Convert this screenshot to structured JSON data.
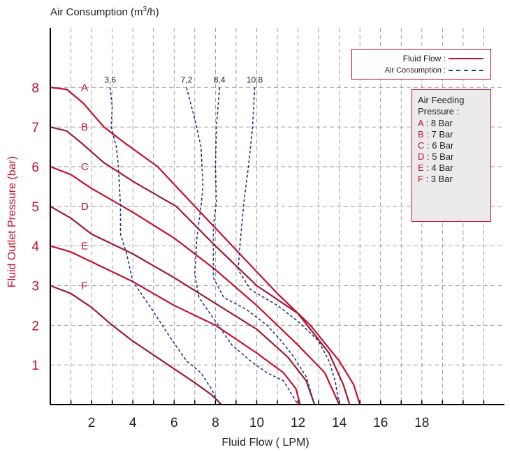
{
  "chart_data": {
    "type": "line",
    "top_axis_label": "Air Consumption (m",
    "top_axis_label_sup": "3",
    "top_axis_label_end": "/h)",
    "xlabel": "Fluid Flow ( LPM)",
    "ylabel": "Fluid Outlet Pressure (bar)",
    "xlim": [
      0,
      22
    ],
    "ylim": [
      0,
      9.5
    ],
    "x_ticks": [
      2,
      4,
      6,
      8,
      10,
      12,
      14,
      16,
      18
    ],
    "y_ticks": [
      1,
      2,
      3,
      4,
      5,
      6,
      7,
      8
    ],
    "grid": true,
    "legend": {
      "placement": "top-right",
      "fluid_flow": "Fluid Flow :",
      "air_consumption": "Air Consumption :"
    },
    "feeding_pressure": {
      "title_line1": "Air Feeding",
      "title_line2": "Pressure :",
      "items": [
        {
          "key": "A",
          "text": ": 8 Bar"
        },
        {
          "key": "B",
          "text": ": 7 Bar"
        },
        {
          "key": "C",
          "text": ": 6 Bar"
        },
        {
          "key": "D",
          "text": ": 5 Bar"
        },
        {
          "key": "E",
          "text": ": 4 Bar"
        },
        {
          "key": "F",
          "text": ": 3 Bar"
        }
      ]
    },
    "fluid_flow_series": [
      {
        "label": "A",
        "color": "#c8102e",
        "points": [
          [
            0,
            8
          ],
          [
            0.8,
            7.95
          ],
          [
            1.6,
            7.6
          ],
          [
            2.6,
            7
          ],
          [
            3.6,
            6.6
          ],
          [
            5.2,
            6
          ],
          [
            7,
            5
          ],
          [
            9,
            3.9
          ],
          [
            11,
            2.8
          ],
          [
            12.6,
            2
          ],
          [
            14,
            1.1
          ],
          [
            14.7,
            0.5
          ],
          [
            15,
            0
          ]
        ]
      },
      {
        "label": "B",
        "color": "#9e1b32",
        "points": [
          [
            0,
            7
          ],
          [
            0.8,
            6.9
          ],
          [
            1.5,
            6.6
          ],
          [
            2.6,
            6.1
          ],
          [
            4.1,
            5.6
          ],
          [
            6.1,
            5
          ],
          [
            8,
            4
          ],
          [
            10,
            3
          ],
          [
            12,
            2.3
          ],
          [
            13.5,
            1.3
          ],
          [
            14.2,
            0.5
          ],
          [
            14.5,
            0
          ]
        ]
      },
      {
        "label": "C",
        "color": "#c8102e",
        "points": [
          [
            0,
            6
          ],
          [
            1,
            5.8
          ],
          [
            2,
            5.45
          ],
          [
            4,
            4.85
          ],
          [
            6,
            4.2
          ],
          [
            8,
            3.4
          ],
          [
            10,
            2.5
          ],
          [
            12,
            1.5
          ],
          [
            13.3,
            0.8
          ],
          [
            14,
            0
          ]
        ]
      },
      {
        "label": "D",
        "color": "#9e1b32",
        "points": [
          [
            0,
            5
          ],
          [
            1,
            4.7
          ],
          [
            2,
            4.3
          ],
          [
            4,
            3.8
          ],
          [
            6,
            3.2
          ],
          [
            8,
            2.55
          ],
          [
            10,
            1.9
          ],
          [
            11.5,
            1.2
          ],
          [
            12.4,
            0.6
          ],
          [
            12.8,
            0
          ]
        ]
      },
      {
        "label": "E",
        "color": "#c8102e",
        "points": [
          [
            0,
            4
          ],
          [
            1,
            3.85
          ],
          [
            2,
            3.6
          ],
          [
            4,
            3.1
          ],
          [
            6,
            2.5
          ],
          [
            8,
            2
          ],
          [
            10,
            1.3
          ],
          [
            11.3,
            0.8
          ],
          [
            11.9,
            0.4
          ],
          [
            12.1,
            0
          ]
        ]
      },
      {
        "label": "F",
        "color": "#9e1b32",
        "points": [
          [
            0,
            3
          ],
          [
            1,
            2.8
          ],
          [
            2,
            2.45
          ],
          [
            3,
            2
          ],
          [
            4,
            1.6
          ],
          [
            5,
            1.25
          ],
          [
            6,
            0.9
          ],
          [
            7,
            0.55
          ],
          [
            7.8,
            0.25
          ],
          [
            8.3,
            0
          ]
        ]
      }
    ],
    "air_consumption_series": [
      {
        "label": "3,6",
        "color": "#2e3192",
        "points": [
          [
            2.9,
            8
          ],
          [
            3,
            7.5
          ],
          [
            2.95,
            7
          ],
          [
            3.2,
            6.5
          ],
          [
            3.3,
            6
          ],
          [
            3.4,
            5
          ],
          [
            3.4,
            4.3
          ],
          [
            3.7,
            3.8
          ],
          [
            4,
            3.1
          ],
          [
            4.8,
            2.5
          ],
          [
            5.8,
            1.7
          ],
          [
            6.6,
            1.1
          ],
          [
            7.3,
            0.8
          ],
          [
            7.8,
            0.4
          ],
          [
            8.2,
            0
          ]
        ]
      },
      {
        "label": "7,2",
        "color": "#2e3192",
        "points": [
          [
            6.6,
            8
          ],
          [
            7,
            7.2
          ],
          [
            7.3,
            6.5
          ],
          [
            7.4,
            5.5
          ],
          [
            7.3,
            5
          ],
          [
            7.1,
            4.2
          ],
          [
            7,
            3.3
          ],
          [
            7.2,
            2.7
          ],
          [
            8,
            2.1
          ],
          [
            8.8,
            1.5
          ],
          [
            9.7,
            1.1
          ],
          [
            10.5,
            0.8
          ],
          [
            11.3,
            0.6
          ],
          [
            12,
            0
          ]
        ]
      },
      {
        "label": "8,4",
        "color": "#2e3192",
        "points": [
          [
            8.2,
            8
          ],
          [
            8.05,
            7
          ],
          [
            8,
            6
          ],
          [
            8.05,
            5.1
          ],
          [
            7.9,
            4.5
          ],
          [
            7.9,
            3.2
          ],
          [
            8.4,
            2.7
          ],
          [
            9.5,
            2.4
          ],
          [
            10.5,
            2
          ],
          [
            11.2,
            1.6
          ],
          [
            11.8,
            1.2
          ],
          [
            12.4,
            0.7
          ],
          [
            12.8,
            0
          ]
        ]
      },
      {
        "label": "10,8",
        "color": "#2e3192",
        "points": [
          [
            9.9,
            8
          ],
          [
            9.8,
            7
          ],
          [
            9.6,
            6
          ],
          [
            9.4,
            5.2
          ],
          [
            9.2,
            4.1
          ],
          [
            9.1,
            3.4
          ],
          [
            9.7,
            2.9
          ],
          [
            11,
            2.5
          ],
          [
            12,
            2.1
          ],
          [
            13,
            1.6
          ],
          [
            13.5,
            1.1
          ],
          [
            13.8,
            0.6
          ],
          [
            14,
            0
          ]
        ]
      }
    ]
  }
}
